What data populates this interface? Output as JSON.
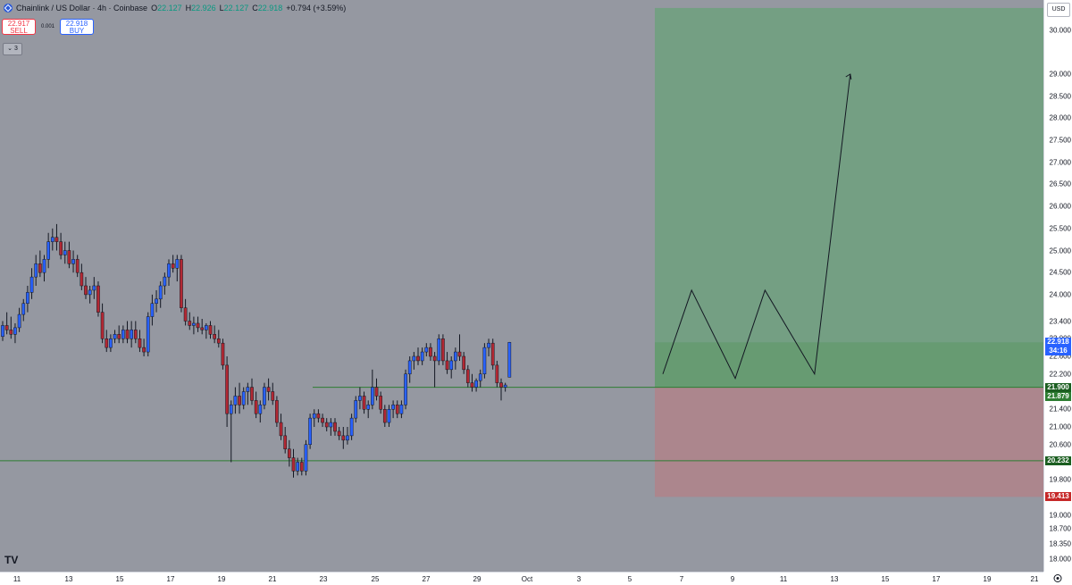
{
  "legend": {
    "symbol": "Chainlink / US Dollar · 4h · Coinbase",
    "open_key": "O",
    "open": "22.127",
    "high_key": "H",
    "high": "22.926",
    "low_key": "L",
    "low": "22.127",
    "close_key": "C",
    "close": "22.918",
    "change": "+0.794 (+3.59%)"
  },
  "trade": {
    "sell_price": "22.917",
    "sell_label": "SELL",
    "spread": "0.001",
    "buy_price": "22.918",
    "buy_label": "BUY"
  },
  "indicators_toggle": "3",
  "currency": "USD",
  "price_axis": {
    "labels": [
      "30.000",
      "29.000",
      "28.500",
      "28.000",
      "27.500",
      "27.000",
      "26.500",
      "26.000",
      "25.500",
      "25.000",
      "24.500",
      "24.000",
      "23.400",
      "23.000",
      "22.600",
      "22.200",
      "21.400",
      "21.000",
      "20.600",
      "19.800",
      "19.000",
      "18.700",
      "18.350",
      "18.000"
    ],
    "current_price": "22.918",
    "countdown": "34:16",
    "level_entry": "21.900",
    "level_low": "21.879",
    "level_support": "20.232",
    "level_stop": "19.413"
  },
  "time_axis": [
    "11",
    "13",
    "15",
    "17",
    "19",
    "21",
    "23",
    "25",
    "27",
    "29",
    "Oct",
    "3",
    "5",
    "7",
    "9",
    "11",
    "13",
    "15",
    "17",
    "19",
    "21"
  ],
  "colors": {
    "background": "#9598a1",
    "up": "#2962ff",
    "down": "#b22833",
    "profit_zone": "#6fa07e",
    "loss_zone": "#b08389",
    "line": "#2e7d32"
  },
  "chart_data": {
    "type": "candlestick",
    "interval": "4h",
    "candles": [
      [
        23.05,
        23.4,
        22.95,
        23.3
      ],
      [
        23.3,
        23.6,
        23.1,
        23.2
      ],
      [
        23.2,
        23.5,
        23.0,
        23.1
      ],
      [
        23.1,
        23.35,
        22.9,
        23.25
      ],
      [
        23.25,
        23.7,
        23.15,
        23.55
      ],
      [
        23.55,
        23.9,
        23.4,
        23.8
      ],
      [
        23.8,
        24.2,
        23.6,
        24.05
      ],
      [
        24.05,
        24.6,
        23.9,
        24.4
      ],
      [
        24.4,
        24.9,
        24.2,
        24.7
      ],
      [
        24.7,
        25.0,
        24.4,
        24.5
      ],
      [
        24.5,
        24.9,
        24.3,
        24.8
      ],
      [
        24.8,
        25.4,
        24.6,
        25.2
      ],
      [
        25.2,
        25.5,
        25.0,
        25.3
      ],
      [
        25.3,
        25.6,
        25.0,
        25.2
      ],
      [
        25.2,
        25.4,
        24.8,
        24.9
      ],
      [
        24.9,
        25.2,
        24.7,
        25.0
      ],
      [
        25.0,
        25.2,
        24.6,
        24.7
      ],
      [
        24.7,
        25.0,
        24.5,
        24.8
      ],
      [
        24.8,
        24.9,
        24.4,
        24.5
      ],
      [
        24.5,
        24.7,
        24.1,
        24.2
      ],
      [
        24.2,
        24.4,
        23.9,
        24.0
      ],
      [
        24.0,
        24.2,
        23.8,
        24.1
      ],
      [
        24.1,
        24.4,
        23.9,
        24.2
      ],
      [
        24.2,
        24.3,
        23.5,
        23.6
      ],
      [
        23.6,
        23.8,
        22.9,
        23.0
      ],
      [
        23.0,
        23.2,
        22.7,
        22.8
      ],
      [
        22.8,
        23.1,
        22.7,
        23.0
      ],
      [
        23.0,
        23.2,
        22.9,
        23.1
      ],
      [
        23.1,
        23.3,
        22.9,
        23.0
      ],
      [
        23.0,
        23.3,
        22.9,
        23.2
      ],
      [
        23.2,
        23.4,
        22.9,
        23.0
      ],
      [
        23.0,
        23.4,
        22.8,
        23.2
      ],
      [
        23.2,
        23.4,
        22.9,
        23.0
      ],
      [
        23.0,
        23.2,
        22.7,
        22.8
      ],
      [
        22.8,
        23.0,
        22.6,
        22.7
      ],
      [
        22.7,
        23.6,
        22.6,
        23.5
      ],
      [
        23.5,
        24.0,
        23.3,
        23.8
      ],
      [
        23.8,
        24.1,
        23.6,
        23.9
      ],
      [
        23.9,
        24.3,
        23.7,
        24.2
      ],
      [
        24.2,
        24.5,
        24.0,
        24.4
      ],
      [
        24.4,
        24.8,
        24.2,
        24.7
      ],
      [
        24.7,
        24.9,
        24.5,
        24.6
      ],
      [
        24.6,
        24.9,
        24.3,
        24.8
      ],
      [
        24.8,
        24.9,
        23.6,
        23.7
      ],
      [
        23.7,
        23.9,
        23.3,
        23.4
      ],
      [
        23.4,
        23.6,
        23.2,
        23.3
      ],
      [
        23.3,
        23.5,
        23.1,
        23.35
      ],
      [
        23.35,
        23.5,
        23.15,
        23.25
      ],
      [
        23.25,
        23.45,
        23.1,
        23.2
      ],
      [
        23.2,
        23.35,
        23.0,
        23.3
      ],
      [
        23.3,
        23.4,
        23.0,
        23.1
      ],
      [
        23.1,
        23.3,
        22.9,
        23.0
      ],
      [
        23.0,
        23.2,
        22.8,
        22.9
      ],
      [
        22.9,
        23.0,
        22.3,
        22.4
      ],
      [
        22.4,
        22.6,
        21.0,
        21.3
      ],
      [
        21.3,
        21.6,
        20.2,
        21.5
      ],
      [
        21.5,
        21.9,
        21.3,
        21.7
      ],
      [
        21.7,
        22.0,
        21.3,
        21.5
      ],
      [
        21.5,
        21.9,
        21.4,
        21.8
      ],
      [
        21.8,
        22.0,
        21.5,
        21.9
      ],
      [
        21.9,
        22.1,
        21.5,
        21.6
      ],
      [
        21.6,
        21.8,
        21.2,
        21.3
      ],
      [
        21.3,
        21.6,
        21.1,
        21.5
      ],
      [
        21.5,
        22.0,
        21.4,
        21.9
      ],
      [
        21.9,
        22.1,
        21.6,
        21.8
      ],
      [
        21.8,
        22.0,
        21.5,
        21.6
      ],
      [
        21.6,
        21.7,
        21.0,
        21.1
      ],
      [
        21.1,
        21.3,
        20.7,
        20.8
      ],
      [
        20.8,
        21.0,
        20.4,
        20.5
      ],
      [
        20.5,
        20.7,
        20.1,
        20.3
      ],
      [
        20.3,
        20.5,
        19.85,
        20.0
      ],
      [
        20.0,
        20.3,
        19.9,
        20.2
      ],
      [
        20.2,
        20.3,
        19.9,
        20.0
      ],
      [
        20.0,
        20.7,
        19.9,
        20.6
      ],
      [
        20.6,
        21.3,
        20.5,
        21.2
      ],
      [
        21.2,
        21.4,
        21.0,
        21.3
      ],
      [
        21.3,
        21.4,
        21.1,
        21.2
      ],
      [
        21.2,
        21.3,
        21.0,
        21.1
      ],
      [
        21.1,
        21.2,
        20.9,
        21.0
      ],
      [
        21.0,
        21.2,
        20.8,
        21.1
      ],
      [
        21.1,
        21.2,
        20.8,
        20.9
      ],
      [
        20.9,
        21.0,
        20.7,
        20.8
      ],
      [
        20.8,
        21.0,
        20.5,
        20.7
      ],
      [
        20.7,
        21.0,
        20.6,
        20.8
      ],
      [
        20.8,
        21.3,
        20.7,
        21.2
      ],
      [
        21.2,
        21.7,
        21.1,
        21.6
      ],
      [
        21.6,
        21.9,
        21.4,
        21.7
      ],
      [
        21.7,
        21.8,
        21.3,
        21.4
      ],
      [
        21.4,
        21.6,
        21.2,
        21.5
      ],
      [
        21.5,
        22.3,
        21.4,
        21.9
      ],
      [
        21.9,
        22.1,
        21.6,
        21.7
      ],
      [
        21.7,
        21.8,
        21.3,
        21.4
      ],
      [
        21.4,
        21.5,
        21.0,
        21.1
      ],
      [
        21.1,
        21.5,
        21.0,
        21.4
      ],
      [
        21.4,
        21.6,
        21.2,
        21.5
      ],
      [
        21.5,
        21.6,
        21.2,
        21.3
      ],
      [
        21.3,
        21.6,
        21.2,
        21.5
      ],
      [
        21.5,
        22.3,
        21.4,
        22.2
      ],
      [
        22.2,
        22.6,
        22.0,
        22.5
      ],
      [
        22.5,
        22.7,
        22.3,
        22.6
      ],
      [
        22.6,
        22.8,
        22.4,
        22.5
      ],
      [
        22.5,
        22.8,
        22.4,
        22.7
      ],
      [
        22.7,
        22.9,
        22.6,
        22.8
      ],
      [
        22.8,
        22.9,
        22.5,
        22.6
      ],
      [
        22.6,
        22.7,
        21.9,
        22.5
      ],
      [
        22.5,
        23.1,
        22.4,
        23.0
      ],
      [
        23.0,
        23.1,
        22.4,
        22.5
      ],
      [
        22.5,
        22.7,
        22.2,
        22.3
      ],
      [
        22.3,
        22.6,
        22.1,
        22.5
      ],
      [
        22.5,
        22.8,
        22.3,
        22.7
      ],
      [
        22.7,
        23.1,
        22.5,
        22.6
      ],
      [
        22.6,
        22.7,
        22.2,
        22.3
      ],
      [
        22.3,
        22.4,
        21.9,
        22.0
      ],
      [
        22.0,
        22.2,
        21.8,
        21.9
      ],
      [
        21.9,
        22.1,
        21.8,
        22.05
      ],
      [
        22.05,
        22.3,
        21.9,
        22.2
      ],
      [
        22.2,
        22.9,
        22.1,
        22.8
      ],
      [
        22.8,
        23.0,
        22.6,
        22.9
      ],
      [
        22.9,
        23.0,
        22.3,
        22.4
      ],
      [
        22.4,
        22.5,
        21.9,
        22.0
      ],
      [
        22.0,
        22.1,
        21.6,
        21.9
      ],
      [
        21.9,
        22.0,
        21.8,
        21.95
      ],
      [
        22.127,
        22.926,
        22.127,
        22.918
      ]
    ],
    "levels": [
      {
        "price": 21.9,
        "label": "21.900"
      },
      {
        "price": 20.232,
        "label": "20.232"
      }
    ],
    "position": {
      "entry": 21.9,
      "target": 30.5,
      "stop": 19.413
    },
    "projection": [
      [
        21.95,
        22.2
      ],
      [
        23.4,
        24.1
      ],
      [
        25.6,
        22.1
      ],
      [
        27.1,
        24.1
      ],
      [
        29.6,
        22.2
      ],
      [
        31.4,
        29.0
      ]
    ],
    "ylim": [
      17.8,
      30.6
    ]
  }
}
